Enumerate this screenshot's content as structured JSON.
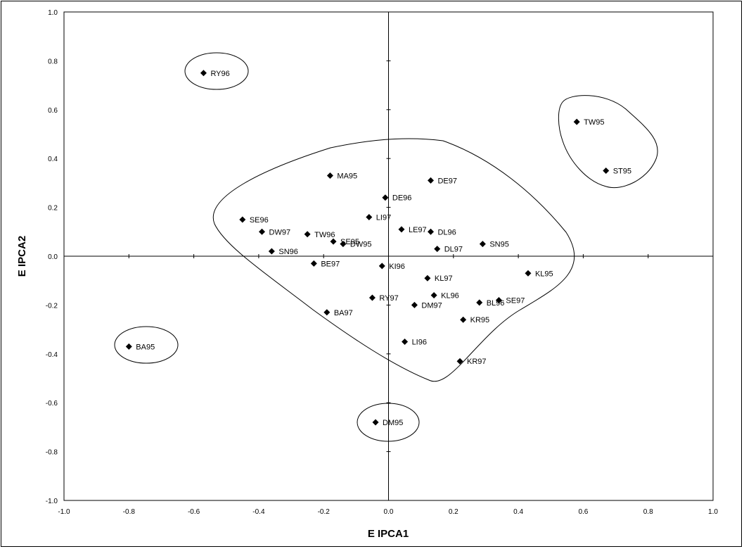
{
  "chart_data": {
    "type": "scatter",
    "title": "",
    "xlabel": "E IPCA1",
    "ylabel": "E IPCA2",
    "xlim": [
      -1.0,
      1.0
    ],
    "ylim": [
      -1.0,
      1.0
    ],
    "xticks": [
      "-1.0",
      "-0.8",
      "-0.6",
      "-0.4",
      "-0.2",
      "0.0",
      "0.2",
      "0.4",
      "0.6",
      "0.8",
      "1.0"
    ],
    "yticks": [
      "1.0",
      "0.8",
      "0.6",
      "0.4",
      "0.2",
      "0.0",
      "-0.2",
      "-0.4",
      "-0.6",
      "-0.8",
      "-1.0"
    ],
    "grid": false,
    "marker": "diamond",
    "marker_color": "#000000",
    "points": [
      {
        "label": "RY96",
        "x": -0.57,
        "y": 0.75
      },
      {
        "label": "TW95",
        "x": 0.58,
        "y": 0.55
      },
      {
        "label": "ST95",
        "x": 0.67,
        "y": 0.35
      },
      {
        "label": "MA95",
        "x": -0.18,
        "y": 0.33
      },
      {
        "label": "DE97",
        "x": 0.13,
        "y": 0.31
      },
      {
        "label": "DE96",
        "x": -0.01,
        "y": 0.24
      },
      {
        "label": "SE96",
        "x": -0.45,
        "y": 0.15
      },
      {
        "label": "LI97",
        "x": -0.06,
        "y": 0.16
      },
      {
        "label": "LE97",
        "x": 0.04,
        "y": 0.11
      },
      {
        "label": "DL96",
        "x": 0.13,
        "y": 0.1
      },
      {
        "label": "DW97",
        "x": -0.39,
        "y": 0.1
      },
      {
        "label": "TW96",
        "x": -0.25,
        "y": 0.09
      },
      {
        "label": "SE95",
        "x": -0.17,
        "y": 0.06
      },
      {
        "label": "DW95",
        "x": -0.14,
        "y": 0.05
      },
      {
        "label": "SN95",
        "x": 0.29,
        "y": 0.05
      },
      {
        "label": "SN96",
        "x": -0.36,
        "y": 0.02
      },
      {
        "label": "DL97",
        "x": 0.15,
        "y": 0.03
      },
      {
        "label": "BE97",
        "x": -0.23,
        "y": -0.03
      },
      {
        "label": "KI96",
        "x": -0.02,
        "y": -0.04
      },
      {
        "label": "KL95",
        "x": 0.43,
        "y": -0.07
      },
      {
        "label": "KL97",
        "x": 0.12,
        "y": -0.09
      },
      {
        "label": "KL96",
        "x": 0.14,
        "y": -0.16
      },
      {
        "label": "RY97",
        "x": -0.05,
        "y": -0.17
      },
      {
        "label": "DM97",
        "x": 0.08,
        "y": -0.2
      },
      {
        "label": "BL96",
        "x": 0.28,
        "y": -0.19
      },
      {
        "label": "SE97",
        "x": 0.34,
        "y": -0.18
      },
      {
        "label": "BA97",
        "x": -0.19,
        "y": -0.23
      },
      {
        "label": "KR95",
        "x": 0.23,
        "y": -0.26
      },
      {
        "label": "LI96",
        "x": 0.05,
        "y": -0.35
      },
      {
        "label": "KR97",
        "x": 0.22,
        "y": -0.43
      },
      {
        "label": "BA95",
        "x": -0.8,
        "y": -0.37
      },
      {
        "label": "DM95",
        "x": -0.04,
        "y": -0.68
      }
    ],
    "annotations": [
      {
        "type": "ellipse",
        "encloses": [
          "RY96"
        ]
      },
      {
        "type": "ellipse",
        "encloses": [
          "BA95"
        ]
      },
      {
        "type": "ellipse",
        "encloses": [
          "DM95"
        ]
      },
      {
        "type": "enclosure",
        "encloses": [
          "TW95",
          "ST95"
        ]
      },
      {
        "type": "enclosure",
        "encloses": [
          "MA95",
          "DE97",
          "DE96",
          "SE96",
          "LI97",
          "LE97",
          "DL96",
          "DW97",
          "TW96",
          "SE95",
          "DW95",
          "SN95",
          "SN96",
          "DL97",
          "BE97",
          "KI96",
          "KL95",
          "KL97",
          "KL96",
          "RY97",
          "DM97",
          "BL96",
          "SE97",
          "BA97",
          "KR95",
          "LI96",
          "KR97"
        ]
      }
    ]
  }
}
